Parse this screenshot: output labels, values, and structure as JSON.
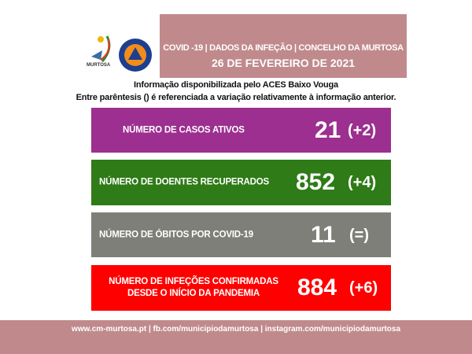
{
  "header": {
    "line1": "COVID -19 | DADOS DA INFEÇÃO | CONCELHO DA MURTOSA",
    "line2": "26 DE FEVEREIRO DE 2021"
  },
  "logos": {
    "murtosa": "MURTOSA",
    "protecao_civil": "PROTECÇÃO CIVIL MURTOSA"
  },
  "info": {
    "line1": "Informação disponibilizada pelo ACES Baixo Vouga",
    "line2": "Entre parêntesis () é referenciada a variação relativamente à informação anterior."
  },
  "stats": [
    {
      "label": "NÚMERO DE CASOS ATIVOS",
      "value": "21",
      "variation": "(+2)",
      "color": "#9c2f8f"
    },
    {
      "label": "NÚMERO DE DOENTES RECUPERADOS",
      "value": "852",
      "variation": "(+4)",
      "color": "#2e7b17"
    },
    {
      "label": "NÚMERO DE ÓBITOS POR COVID-19",
      "value": "11",
      "variation": "(=)",
      "color": "#7f7f79"
    },
    {
      "label": "NÚMERO DE INFEÇÕES CONFIRMADAS DESDE O INÍCIO DA PANDEMIA",
      "value": "884",
      "variation": "(+6)",
      "color": "#fe0000"
    }
  ],
  "footer": {
    "text": "www.cm-murtosa.pt  | fb.com/municipiodamurtosa | instagram.com/municipiodamurtosa"
  }
}
